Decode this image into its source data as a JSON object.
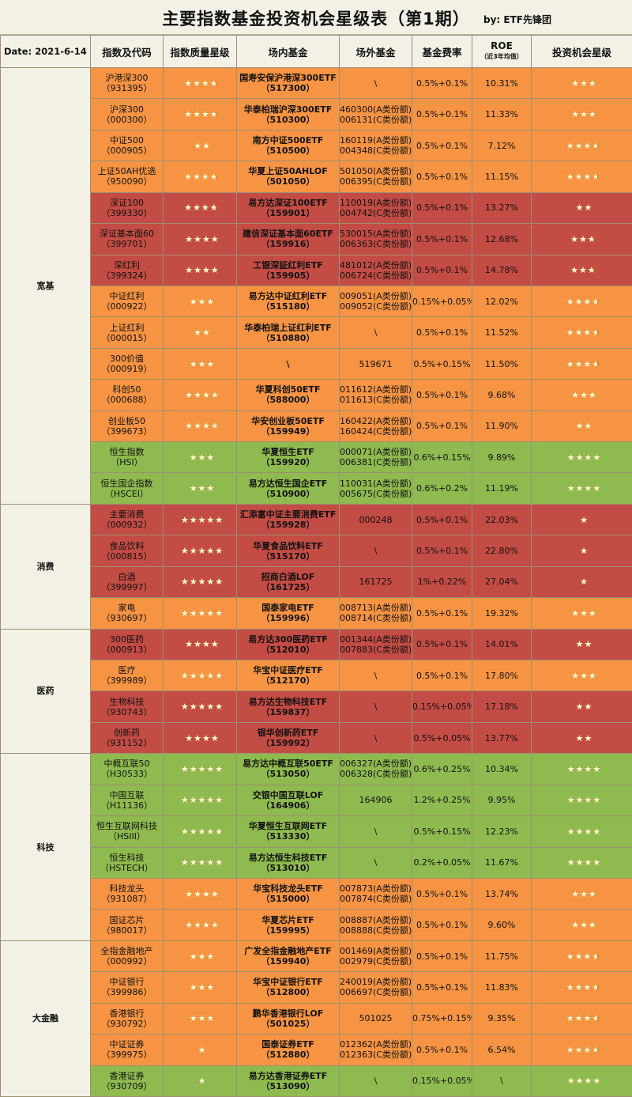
{
  "title": "主要指数基金投资机会星级表（第1期）",
  "author": "by:  ETF先锋团",
  "header": {
    "date": "Date:  2021-6-14",
    "index": "指数及代码",
    "quality": "指数质量星级",
    "onmarket": "场内基金",
    "offmarket": "场外基金",
    "fee": "基金费率",
    "roe": "ROE",
    "roe_sub": "（近3年均值）",
    "opportunity": "投资机会星级"
  },
  "categories": [
    "宽基",
    "消费",
    "医药",
    "科技",
    "大金融"
  ],
  "colors": {
    "orange": "#f69443",
    "red": "#c34c45",
    "green": "#8fba4f",
    "background": "#f3f1e6"
  },
  "rows": [
    {
      "cat": 0,
      "color": "o",
      "idx": "沪港深300",
      "code": "（931395）",
      "q": 3.5,
      "fund": "国寿安保沪港深300ETF",
      "fcode": "（517300）",
      "otc": [
        "\\"
      ],
      "fee": "0.5%+0.1%",
      "roe": "10.31%",
      "opp": 3
    },
    {
      "cat": 0,
      "color": "o",
      "idx": "沪深300",
      "code": "（000300）",
      "q": 3.5,
      "fund": "华泰柏瑞沪深300ETF",
      "fcode": "（510300）",
      "otc": [
        "460300(A类份额)",
        "006131(C类份额)"
      ],
      "fee": "0.5%+0.1%",
      "roe": "11.33%",
      "opp": 3
    },
    {
      "cat": 0,
      "color": "o",
      "idx": "中证500",
      "code": "（000905）",
      "q": 2,
      "fund": "南方中证500ETF",
      "fcode": "（510500）",
      "otc": [
        "160119(A类份额)",
        "004348(C类份额)"
      ],
      "fee": "0.5%+0.1%",
      "roe": "7.12%",
      "opp": 3.5
    },
    {
      "cat": 0,
      "color": "o",
      "idx": "上证50AH优选",
      "code": "（950090）",
      "q": 3.5,
      "fund": "华夏上证50AHLOF",
      "fcode": "（501050）",
      "otc": [
        "501050(A类份额)",
        "006395(C类份额)"
      ],
      "fee": "0.5%+0.1%",
      "roe": "11.15%",
      "opp": 3.5
    },
    {
      "cat": 0,
      "color": "r",
      "idx": "深证100",
      "code": "（399330）",
      "q": 3.5,
      "fund": "易方达深证100ETF",
      "fcode": "（159901）",
      "otc": [
        "110019(A类份额)",
        "004742(C类份额)"
      ],
      "fee": "0.5%+0.1%",
      "roe": "13.27%",
      "opp": 2
    },
    {
      "cat": 0,
      "color": "r",
      "idx": "深证基本面60",
      "code": "（399701）",
      "q": 4,
      "fund": "建信深证基本面60ETF",
      "fcode": "（159916）",
      "otc": [
        "530015(A类份额)",
        "006363(C类份额)"
      ],
      "fee": "0.5%+0.1%",
      "roe": "12.68%",
      "opp": 2.5
    },
    {
      "cat": 0,
      "color": "r",
      "idx": "深红利",
      "code": "（399324）",
      "q": 4,
      "fund": "工银深証红利ETF",
      "fcode": "（159905）",
      "otc": [
        "481012(A类份额)",
        "006724(C类份额)"
      ],
      "fee": "0.5%+0.1%",
      "roe": "14.78%",
      "opp": 2.5
    },
    {
      "cat": 0,
      "color": "o",
      "idx": "中证红利",
      "code": "（000922）",
      "q": 3,
      "fund": "易方达中证红利ETF",
      "fcode": "（515180）",
      "otc": [
        "009051(A类份额)",
        "009052(C类份额)"
      ],
      "fee": "0.15%+0.05%",
      "roe": "12.02%",
      "opp": 3.5
    },
    {
      "cat": 0,
      "color": "o",
      "idx": "上证红利",
      "code": "（000015）",
      "q": 2,
      "fund": "华泰柏瑞上证红利ETF",
      "fcode": "（510880）",
      "otc": [
        "\\"
      ],
      "fee": "0.5%+0.1%",
      "roe": "11.52%",
      "opp": 3.5
    },
    {
      "cat": 0,
      "color": "o",
      "idx": "300价值",
      "code": "（000919）",
      "q": 3,
      "fund": "\\",
      "fcode": "",
      "otc": [
        "519671"
      ],
      "fee": "0.5%+0.15%",
      "roe": "11.50%",
      "opp": 3.5
    },
    {
      "cat": 0,
      "color": "o",
      "idx": "科创50",
      "code": "（000688）",
      "q": 4,
      "fund": "华夏科创50ETF",
      "fcode": "（588000）",
      "otc": [
        "011612(A类份额)",
        "011613(C类份额)"
      ],
      "fee": "0.5%+0.1%",
      "roe": "9.68%",
      "opp": 3
    },
    {
      "cat": 0,
      "color": "o",
      "idx": "创业板50",
      "code": "（399673）",
      "q": 4,
      "fund": "华安创业板50ETF",
      "fcode": "（159949）",
      "otc": [
        "160422(A类份额)",
        "160424(C类份额)"
      ],
      "fee": "0.5%+0.1%",
      "roe": "11.90%",
      "opp": 2
    },
    {
      "cat": 0,
      "color": "g",
      "idx": "恒生指数",
      "code": "（HSI）",
      "q": 3,
      "fund": "华夏恒生ETF",
      "fcode": "（159920）",
      "otc": [
        "000071(A类份额)",
        "006381(C类份额)"
      ],
      "fee": "0.6%+0.15%",
      "roe": "9.89%",
      "opp": 4
    },
    {
      "cat": 0,
      "color": "g",
      "idx": "恒生国企指数",
      "code": "（HSCEI）",
      "q": 3,
      "fund": "易方达恒生国企ETF",
      "fcode": "（510900）",
      "otc": [
        "110031(A类份额)",
        "005675(C类份额)"
      ],
      "fee": "0.6%+0.2%",
      "roe": "11.19%",
      "opp": 4
    },
    {
      "cat": 1,
      "color": "r",
      "idx": "主要消费",
      "code": "（000932）",
      "q": 5,
      "fund": "汇添富中证主要消费ETF",
      "fcode": "（159928）",
      "otc": [
        "000248"
      ],
      "fee": "0.5%+0.1%",
      "roe": "22.03%",
      "opp": 1
    },
    {
      "cat": 1,
      "color": "r",
      "idx": "食品饮料",
      "code": "（000815）",
      "q": 5,
      "fund": "华夏食品饮料ETF",
      "fcode": "（515170）",
      "otc": [
        "\\"
      ],
      "fee": "0.5%+0.1%",
      "roe": "22.80%",
      "opp": 1
    },
    {
      "cat": 1,
      "color": "r",
      "idx": "白酒",
      "code": "（399997）",
      "q": 5,
      "fund": "招商白酒LOF",
      "fcode": "（161725）",
      "otc": [
        "161725"
      ],
      "fee": "1%+0.22%",
      "roe": "27.04%",
      "opp": 1
    },
    {
      "cat": 1,
      "color": "o",
      "idx": "家电",
      "code": "（930697）",
      "q": 5,
      "fund": "国泰家电ETF",
      "fcode": "（159996）",
      "otc": [
        "008713(A类份额)",
        "008714(C类份额)"
      ],
      "fee": "0.5%+0.1%",
      "roe": "19.32%",
      "opp": 3
    },
    {
      "cat": 2,
      "color": "r",
      "idx": "300医药",
      "code": "（000913）",
      "q": 4,
      "fund": "易方达300医药ETF",
      "fcode": "（512010）",
      "otc": [
        "001344(A类份额)",
        "007883(C类份额)"
      ],
      "fee": "0.5%+0.1%",
      "roe": "14.01%",
      "opp": 2
    },
    {
      "cat": 2,
      "color": "o",
      "idx": "医疗",
      "code": "（399989）",
      "q": 5,
      "fund": "华宝中证医疗ETF",
      "fcode": "（512170）",
      "otc": [
        "\\"
      ],
      "fee": "0.5%+0.1%",
      "roe": "17.80%",
      "opp": 3
    },
    {
      "cat": 2,
      "color": "r",
      "idx": "生物科技",
      "code": "（930743）",
      "q": 5,
      "fund": "易方达生物科技ETF",
      "fcode": "（159837）",
      "otc": [
        "\\"
      ],
      "fee": "0.15%+0.05%",
      "roe": "17.18%",
      "opp": 2
    },
    {
      "cat": 2,
      "color": "r",
      "idx": "创新药",
      "code": "（931152）",
      "q": 4,
      "fund": "银华创新药ETF",
      "fcode": "（159992）",
      "otc": [
        "\\"
      ],
      "fee": "0.5%+0.05%",
      "roe": "13.77%",
      "opp": 2
    },
    {
      "cat": 3,
      "color": "g",
      "idx": "中概互联50",
      "code": "（H30533）",
      "q": 5,
      "fund": "易方达中概互联50ETF",
      "fcode": "（513050）",
      "otc": [
        "006327(A类份额)",
        "006328(C类份额)"
      ],
      "fee": "0.6%+0.25%",
      "roe": "10.34%",
      "opp": 4
    },
    {
      "cat": 3,
      "color": "g",
      "idx": "中国互联",
      "code": "（H11136）",
      "q": 5,
      "fund": "交银中国互联LOF",
      "fcode": "（164906）",
      "otc": [
        "164906"
      ],
      "fee": "1.2%+0.25%",
      "roe": "9.95%",
      "opp": 4
    },
    {
      "cat": 3,
      "color": "g",
      "idx": "恒生互联网科技",
      "code": "（HSIII）",
      "q": 5,
      "fund": "华夏恒生互联网ETF",
      "fcode": "（513330）",
      "otc": [
        "\\"
      ],
      "fee": "0.5%+0.15%",
      "roe": "12.23%",
      "opp": 4
    },
    {
      "cat": 3,
      "color": "g",
      "idx": "恒生科技",
      "code": "（HSTECH）",
      "q": 5,
      "fund": "易方达恒生科技ETF",
      "fcode": "（513010）",
      "otc": [
        "\\"
      ],
      "fee": "0.2%+0.05%",
      "roe": "11.67%",
      "opp": 4
    },
    {
      "cat": 3,
      "color": "o",
      "idx": "科技龙头",
      "code": "（931087）",
      "q": 4,
      "fund": "华宝科技龙头ETF",
      "fcode": "（515000）",
      "otc": [
        "007873(A类份额)",
        "007874(C类份额)"
      ],
      "fee": "0.5%+0.1%",
      "roe": "13.74%",
      "opp": 3
    },
    {
      "cat": 3,
      "color": "o",
      "idx": "国证芯片",
      "code": "（980017）",
      "q": 4,
      "fund": "华夏芯片ETF",
      "fcode": "（159995）",
      "otc": [
        "008887(A类份额)",
        "008888(C类份额)"
      ],
      "fee": "0.5%+0.1%",
      "roe": "9.60%",
      "opp": 3
    },
    {
      "cat": 4,
      "color": "o",
      "idx": "全指金融地产",
      "code": "（000992）",
      "q": 3,
      "fund": "广发全指金融地产ETF",
      "fcode": "（159940）",
      "otc": [
        "001469(A类份额)",
        "002979(C类份额)"
      ],
      "fee": "0.5%+0.1%",
      "roe": "11.75%",
      "opp": 3.5
    },
    {
      "cat": 4,
      "color": "o",
      "idx": "中证银行",
      "code": "（399986）",
      "q": 3,
      "fund": "华宝中证银行ETF",
      "fcode": "（512800）",
      "otc": [
        "240019(A类份额)",
        "006697(C类份额)"
      ],
      "fee": "0.5%+0.1%",
      "roe": "11.83%",
      "opp": 3.5
    },
    {
      "cat": 4,
      "color": "o",
      "idx": "香港银行",
      "code": "（930792）",
      "q": 3,
      "fund": "鹏华香港银行LOF",
      "fcode": "（501025）",
      "otc": [
        "501025"
      ],
      "fee": "0.75%+0.15%",
      "roe": "9.35%",
      "opp": 3.5
    },
    {
      "cat": 4,
      "color": "o",
      "idx": "中证证券",
      "code": "（399975）",
      "q": 1,
      "fund": "国泰证券ETF",
      "fcode": "（512880）",
      "otc": [
        "012362(A类份额)",
        "012363(C类份额)"
      ],
      "fee": "0.5%+0.1%",
      "roe": "6.54%",
      "opp": 3.5
    },
    {
      "cat": 4,
      "color": "g",
      "idx": "香港证券",
      "code": "（930709）",
      "q": 1,
      "fund": "易方达香港证券ETF",
      "fcode": "（513090）",
      "otc": [
        "\\"
      ],
      "fee": "0.15%+0.05%",
      "roe": "\\",
      "opp": 4
    }
  ]
}
